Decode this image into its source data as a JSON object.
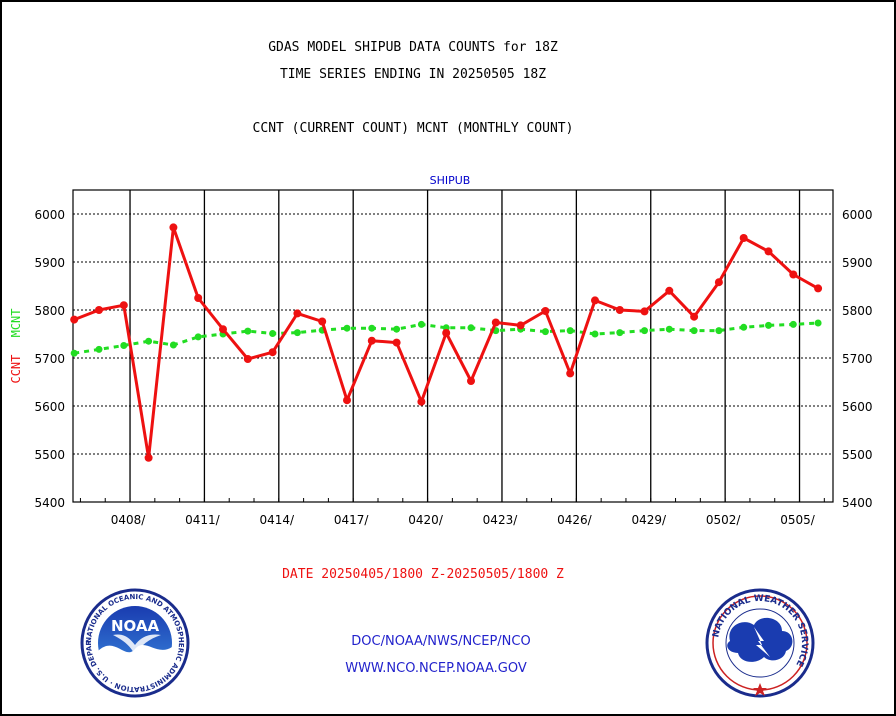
{
  "header": {
    "title_line1": "GDAS MODEL SHIPUB DATA COUNTS for 18Z",
    "title_line2": "TIME SERIES ENDING IN 20250505 18Z",
    "subtitle": "CCNT (CURRENT COUNT) MCNT (MONTHLY COUNT)"
  },
  "footer": {
    "date_range": "DATE 20250405/1800 Z-20250505/1800 Z",
    "org_line": "DOC/NOAA/NWS/NCEP/NCO",
    "url_line": "WWW.NCO.NCEP.NOAA.GOV",
    "left_logo": {
      "name": "noaa-logo",
      "text": "NOAA",
      "ring_text": "NATIONAL OCEANIC AND ATMOSPHERIC ADMINISTRATION · U.S. DEPARTMENT OF COMMERCE"
    },
    "right_logo": {
      "name": "nws-logo",
      "ring_text": "NATIONAL WEATHER SERVICE"
    }
  },
  "colors": {
    "ccnt": "#ee1111",
    "mcnt": "#22dd22",
    "panel_title": "#0000cc",
    "footer_red": "#ee1111",
    "footer_blue": "#2222cc"
  },
  "chart_data": {
    "type": "line",
    "panel_title": "SHIPUB",
    "ylabel_left_parts": [
      {
        "text": "CCNT",
        "color": "#ee1111"
      },
      {
        "text": "MCNT",
        "color": "#22dd22"
      }
    ],
    "ylim": [
      5400,
      6050
    ],
    "yticks": [
      5400,
      5500,
      5600,
      5700,
      5800,
      5900,
      6000
    ],
    "x_start": "2025-04-05",
    "x_end": "2025-05-05",
    "xtick_labels": [
      "0408/",
      "0411/",
      "0414/",
      "0417/",
      "0420/",
      "0423/",
      "0426/",
      "0429/",
      "0502/",
      "0505/"
    ],
    "x": [
      "0405",
      "0406",
      "0407",
      "0408",
      "0409",
      "0410",
      "0411",
      "0412",
      "0413",
      "0414",
      "0415",
      "0416",
      "0417",
      "0418",
      "0419",
      "0420",
      "0421",
      "0422",
      "0423",
      "0424",
      "0425",
      "0426",
      "0427",
      "0428",
      "0429",
      "0430",
      "0501",
      "0502",
      "0503",
      "0504",
      "0505"
    ],
    "grid": true,
    "series": [
      {
        "name": "CCNT",
        "color": "#ee1111",
        "values": [
          5780,
          5800,
          5810,
          5492,
          5972,
          5825,
          5760,
          5698,
          5712,
          5793,
          5776,
          5612,
          5736,
          5732,
          5609,
          5752,
          5652,
          5774,
          5768,
          5798,
          5668,
          5820,
          5800,
          5797,
          5840,
          5786,
          5858,
          5950,
          5922,
          5874,
          5845
        ]
      },
      {
        "name": "MCNT",
        "color": "#22dd22",
        "values": [
          5710,
          5718,
          5726,
          5735,
          5727,
          5744,
          5750,
          5756,
          5751,
          5753,
          5758,
          5762,
          5762,
          5760,
          5770,
          5763,
          5763,
          5757,
          5760,
          5755,
          5757,
          5750,
          5753,
          5757,
          5760,
          5757,
          5757,
          5764,
          5768,
          5770,
          5773
        ]
      }
    ]
  }
}
